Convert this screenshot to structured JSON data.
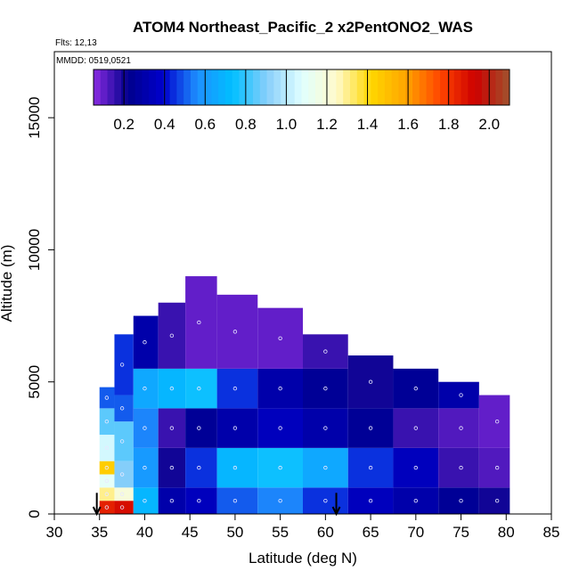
{
  "chart_data": {
    "type": "heatmap",
    "title": "ATOM4 Northeast_Pacific_2 x2PentONO2_WAS",
    "annotations": {
      "flights": "Flts: 12,13",
      "dates": "MMDD: 0519,0521"
    },
    "xlabel": "Latitude (deg N)",
    "ylabel": "Altitude (m)",
    "xlim": [
      30,
      85
    ],
    "ylim": [
      0,
      17500
    ],
    "x_ticks": [
      30,
      35,
      40,
      45,
      50,
      55,
      60,
      65,
      70,
      75,
      80,
      85
    ],
    "y_ticks": [
      0,
      5000,
      10000,
      15000
    ],
    "colorbar": {
      "range": [
        0.05,
        2.1
      ],
      "ticks": [
        "0.2",
        "0.4",
        "0.6",
        "0.8",
        "1.0",
        "1.2",
        "1.4",
        "1.6",
        "1.8",
        "2.0"
      ],
      "colors": [
        "#8a2be2",
        "#00008b",
        "#0000cd",
        "#1e90ff",
        "#00bfff",
        "#87cefa",
        "#e0ffff",
        "#fffacd",
        "#ffd700",
        "#ffa500",
        "#ff4500",
        "#cd0000",
        "#a0522d"
      ]
    },
    "arrows_at_latitude": [
      34.7,
      61.2
    ],
    "grid": false,
    "curtain_columns": [
      {
        "lat": 35.8,
        "top": 4800,
        "layers": [
          [
            0,
            500,
            1.85
          ],
          [
            500,
            1000,
            1.3
          ],
          [
            1000,
            1500,
            1.1
          ],
          [
            1500,
            2000,
            1.45
          ],
          [
            2000,
            3000,
            1.05
          ],
          [
            3000,
            4000,
            0.85
          ],
          [
            4000,
            4800,
            0.5
          ]
        ]
      },
      {
        "lat": 37.5,
        "top": 6800,
        "layers": [
          [
            0,
            500,
            1.9
          ],
          [
            500,
            1000,
            1.2
          ],
          [
            1000,
            2000,
            0.9
          ],
          [
            2000,
            3500,
            0.85
          ],
          [
            3500,
            4500,
            0.5
          ],
          [
            4500,
            6800,
            0.45
          ]
        ]
      },
      {
        "lat": 40.0,
        "top": 7500,
        "layers": [
          [
            0,
            1000,
            0.7
          ],
          [
            1000,
            2500,
            0.6
          ],
          [
            2500,
            4000,
            0.55
          ],
          [
            4000,
            5500,
            0.65
          ],
          [
            5500,
            7500,
            0.3
          ]
        ]
      },
      {
        "lat": 43.0,
        "top": 8000,
        "layers": [
          [
            0,
            1000,
            0.3
          ],
          [
            1000,
            2500,
            0.2
          ],
          [
            2500,
            4000,
            0.15
          ],
          [
            4000,
            5500,
            0.7
          ],
          [
            5500,
            8000,
            0.15
          ]
        ]
      },
      {
        "lat": 46.0,
        "top": 9000,
        "layers": [
          [
            0,
            1000,
            0.35
          ],
          [
            1000,
            2500,
            0.45
          ],
          [
            2500,
            4000,
            0.25
          ],
          [
            4000,
            5500,
            0.75
          ],
          [
            5500,
            9000,
            0.1
          ]
        ]
      },
      {
        "lat": 50.0,
        "top": 8300,
        "layers": [
          [
            0,
            1000,
            0.5
          ],
          [
            1000,
            2500,
            0.7
          ],
          [
            2500,
            4000,
            0.3
          ],
          [
            4000,
            5500,
            0.45
          ],
          [
            5500,
            8300,
            0.1
          ]
        ]
      },
      {
        "lat": 55.0,
        "top": 7800,
        "layers": [
          [
            0,
            1000,
            0.55
          ],
          [
            1000,
            2500,
            0.75
          ],
          [
            2500,
            4000,
            0.35
          ],
          [
            4000,
            5500,
            0.3
          ],
          [
            5500,
            7800,
            0.1
          ]
        ]
      },
      {
        "lat": 60.0,
        "top": 6800,
        "layers": [
          [
            0,
            1000,
            0.45
          ],
          [
            1000,
            2500,
            0.65
          ],
          [
            2500,
            4000,
            0.3
          ],
          [
            4000,
            5500,
            0.25
          ],
          [
            5500,
            6800,
            0.15
          ]
        ]
      },
      {
        "lat": 65.0,
        "top": 6000,
        "layers": [
          [
            0,
            1000,
            0.35
          ],
          [
            1000,
            2500,
            0.45
          ],
          [
            2500,
            4000,
            0.25
          ],
          [
            4000,
            6000,
            0.2
          ]
        ]
      },
      {
        "lat": 70.0,
        "top": 5500,
        "layers": [
          [
            0,
            1000,
            0.3
          ],
          [
            1000,
            2500,
            0.35
          ],
          [
            2500,
            4000,
            0.15
          ],
          [
            4000,
            5500,
            0.25
          ]
        ]
      },
      {
        "lat": 75.0,
        "top": 5000,
        "layers": [
          [
            0,
            1000,
            0.25
          ],
          [
            1000,
            2500,
            0.15
          ],
          [
            2500,
            4000,
            0.12
          ],
          [
            4000,
            5000,
            0.3
          ]
        ]
      },
      {
        "lat": 79.0,
        "top": 4500,
        "layers": [
          [
            0,
            1000,
            0.2
          ],
          [
            1000,
            2500,
            0.12
          ],
          [
            2500,
            4500,
            0.1
          ]
        ]
      }
    ]
  }
}
